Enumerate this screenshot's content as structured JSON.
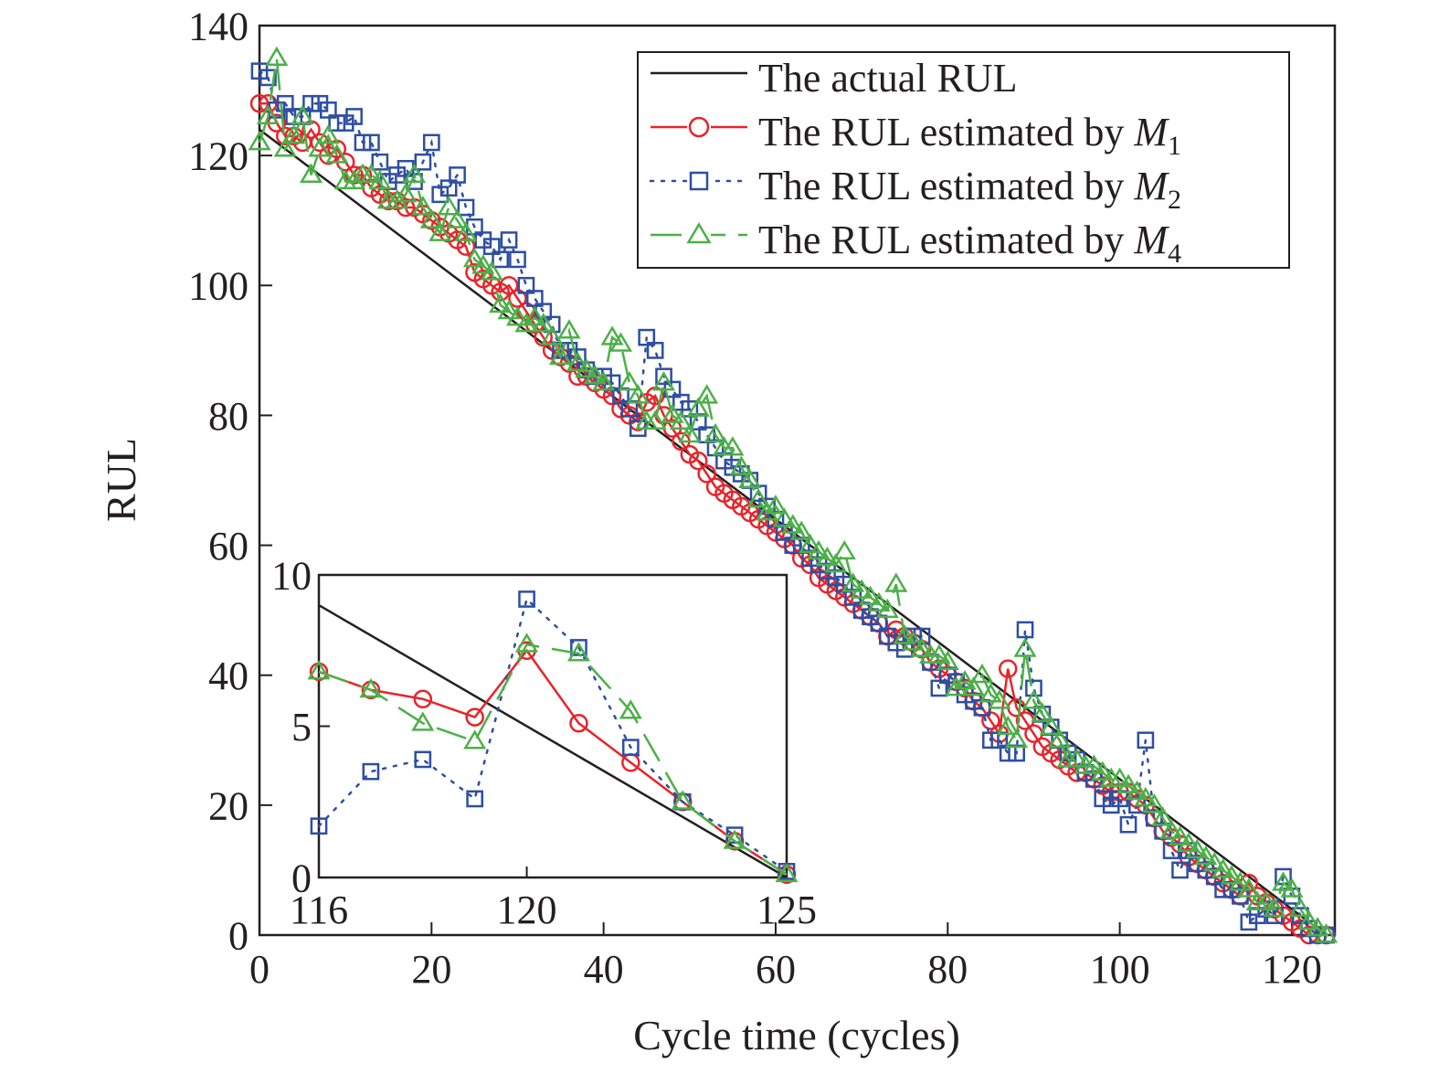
{
  "chart_data": [
    {
      "type": "line",
      "role": "main",
      "xlabel": "Cycle time (cycles)",
      "ylabel": "RUL",
      "xlim": [
        0,
        125
      ],
      "ylim": [
        0,
        140
      ],
      "xticks": [
        0,
        20,
        40,
        60,
        80,
        100,
        120
      ],
      "yticks": [
        0,
        20,
        40,
        60,
        80,
        100,
        120,
        140
      ],
      "legend_position": "top-right",
      "series": [
        {
          "name": "The actual RUL",
          "color": "#231f20",
          "style": "solid",
          "marker": "none",
          "x": [
            0,
            124
          ],
          "y": [
            124,
            0
          ]
        },
        {
          "name": "The RUL estimated by M1",
          "name_main": "The RUL estimated by ",
          "name_var": "M",
          "name_sub": "1",
          "color": "#e8242b",
          "style": "solid",
          "marker": "circle",
          "x": [
            0,
            1,
            2,
            3,
            4,
            5,
            6,
            7,
            8,
            9,
            10,
            11,
            12,
            13,
            14,
            15,
            16,
            17,
            18,
            19,
            20,
            21,
            22,
            23,
            24,
            25,
            26,
            27,
            28,
            29,
            30,
            31,
            32,
            33,
            34,
            35,
            36,
            37,
            38,
            39,
            40,
            41,
            42,
            43,
            44,
            45,
            46,
            47,
            48,
            49,
            50,
            51,
            52,
            53,
            54,
            55,
            56,
            57,
            58,
            59,
            60,
            61,
            62,
            63,
            64,
            65,
            66,
            67,
            68,
            69,
            70,
            71,
            72,
            73,
            74,
            75,
            76,
            77,
            78,
            79,
            80,
            81,
            82,
            83,
            84,
            85,
            86,
            87,
            88,
            89,
            90,
            91,
            92,
            93,
            94,
            95,
            96,
            97,
            98,
            99,
            100,
            101,
            102,
            103,
            104,
            105,
            106,
            107,
            108,
            109,
            110,
            111,
            112,
            113,
            114,
            115,
            116,
            117,
            118,
            119,
            120,
            121,
            122,
            123,
            124
          ],
          "y": [
            128,
            128,
            125,
            123,
            123,
            122,
            124,
            122,
            120,
            121,
            119,
            117,
            117,
            115,
            114,
            113,
            113,
            112,
            112,
            111,
            110,
            109,
            108,
            107,
            106,
            102,
            101,
            100,
            99,
            100,
            98,
            96,
            94,
            92,
            90,
            89,
            88,
            86,
            86,
            85,
            84,
            83,
            81,
            80,
            79,
            82,
            83,
            80,
            78,
            76,
            74,
            73,
            71,
            69,
            68,
            67,
            66,
            65,
            64,
            63,
            62,
            61,
            60,
            58,
            57,
            55,
            54,
            53,
            52,
            51,
            50,
            49,
            48,
            46,
            47,
            46,
            45,
            44,
            42,
            41,
            40,
            39,
            38,
            36,
            35,
            33,
            31,
            41,
            35,
            33,
            31,
            29,
            28,
            27,
            26,
            25,
            25,
            24,
            23,
            22,
            22,
            22,
            21,
            20,
            18,
            16,
            15,
            14,
            12,
            11,
            10,
            9,
            8,
            7,
            6,
            8,
            6,
            5,
            4,
            3,
            2,
            1,
            0,
            0,
            0
          ],
          "source_note": "estimated"
        },
        {
          "name": "The RUL estimated by M2",
          "name_main": "The RUL estimated by ",
          "name_var": "M",
          "name_sub": "2",
          "color": "#2e4ea2",
          "style": "dotted",
          "marker": "square",
          "x": [
            0,
            1,
            2,
            3,
            4,
            5,
            6,
            7,
            8,
            9,
            10,
            11,
            12,
            13,
            14,
            15,
            16,
            17,
            18,
            19,
            20,
            21,
            22,
            23,
            24,
            25,
            26,
            27,
            28,
            29,
            30,
            31,
            32,
            33,
            34,
            35,
            36,
            37,
            38,
            39,
            40,
            41,
            42,
            43,
            44,
            45,
            46,
            47,
            48,
            49,
            50,
            51,
            52,
            53,
            54,
            55,
            56,
            57,
            58,
            59,
            60,
            61,
            62,
            63,
            64,
            65,
            66,
            67,
            68,
            69,
            70,
            71,
            72,
            73,
            74,
            75,
            76,
            77,
            78,
            79,
            80,
            81,
            82,
            83,
            84,
            85,
            86,
            87,
            88,
            89,
            90,
            91,
            92,
            93,
            94,
            95,
            96,
            97,
            98,
            99,
            100,
            101,
            102,
            103,
            104,
            105,
            106,
            107,
            108,
            109,
            110,
            111,
            112,
            113,
            114,
            115,
            116,
            117,
            118,
            119,
            120,
            121,
            122,
            123,
            124
          ],
          "y": [
            133,
            132,
            127,
            128,
            126,
            126,
            128,
            128,
            127,
            125,
            125,
            126,
            122,
            122,
            119,
            116,
            117,
            118,
            116,
            119,
            122,
            114,
            115,
            117,
            112,
            109,
            107,
            106,
            104,
            107,
            104,
            100,
            98,
            96,
            94,
            90,
            90,
            89,
            87,
            86,
            86,
            85,
            83,
            81,
            78,
            92,
            90,
            86,
            84,
            82,
            81,
            79,
            77,
            75,
            73,
            72,
            71,
            70,
            68,
            66,
            64,
            62,
            60,
            60,
            58,
            57,
            56,
            55,
            54,
            52,
            50,
            49,
            48,
            46,
            45,
            44,
            46,
            46,
            42,
            38,
            40,
            39,
            37,
            36,
            35,
            30,
            30,
            28,
            28,
            47,
            38,
            34,
            32,
            30,
            28,
            27,
            25,
            24,
            21,
            20,
            21,
            17,
            20,
            30,
            18,
            16,
            13,
            10,
            13,
            11,
            10,
            9,
            7,
            7,
            6,
            2,
            3,
            4,
            3,
            9,
            6,
            3,
            1,
            0,
            0
          ],
          "source_note": "estimated"
        },
        {
          "name": "The RUL estimated by M4",
          "name_main": "The RUL estimated by ",
          "name_var": "M",
          "name_sub": "4",
          "color": "#4cb048",
          "style": "dashed",
          "marker": "triangle",
          "x": [
            0,
            1,
            2,
            3,
            4,
            5,
            6,
            7,
            8,
            9,
            10,
            11,
            12,
            13,
            14,
            15,
            16,
            17,
            18,
            19,
            20,
            21,
            22,
            23,
            24,
            25,
            26,
            27,
            28,
            29,
            30,
            31,
            32,
            33,
            34,
            35,
            36,
            37,
            38,
            39,
            40,
            41,
            42,
            43,
            44,
            45,
            46,
            47,
            48,
            49,
            50,
            51,
            52,
            53,
            54,
            55,
            56,
            57,
            58,
            59,
            60,
            61,
            62,
            63,
            64,
            65,
            66,
            67,
            68,
            69,
            70,
            71,
            72,
            73,
            74,
            75,
            76,
            77,
            78,
            79,
            80,
            81,
            82,
            83,
            84,
            85,
            86,
            87,
            88,
            89,
            90,
            91,
            92,
            93,
            94,
            95,
            96,
            97,
            98,
            99,
            100,
            101,
            102,
            103,
            104,
            105,
            106,
            107,
            108,
            109,
            110,
            111,
            112,
            113,
            114,
            115,
            116,
            117,
            118,
            119,
            120,
            121,
            122,
            123,
            124
          ],
          "y": [
            122,
            126,
            135,
            121,
            123,
            126,
            117,
            121,
            123,
            120,
            116,
            116,
            117,
            117,
            116,
            113,
            113,
            114,
            117,
            112,
            110,
            108,
            112,
            110,
            108,
            104,
            103,
            102,
            97,
            96,
            95,
            94,
            95,
            94,
            92,
            89,
            93,
            88,
            87,
            86,
            85,
            92,
            91,
            85,
            83,
            79,
            79,
            85,
            80,
            79,
            77,
            81,
            83,
            77,
            75,
            75,
            72,
            70,
            67,
            65,
            66,
            64,
            63,
            62,
            60,
            59,
            58,
            57,
            59,
            54,
            53,
            52,
            51,
            50,
            54,
            46,
            45,
            44,
            43,
            43,
            42,
            38,
            39,
            38,
            40,
            37,
            36,
            32,
            30,
            44,
            36,
            34,
            32,
            30,
            27,
            27,
            26,
            26,
            25,
            24,
            24,
            23,
            22,
            21,
            20,
            18,
            16,
            15,
            14,
            13,
            12,
            11,
            10,
            9,
            8,
            7,
            5,
            5,
            4,
            8,
            7,
            4,
            2,
            1,
            0
          ],
          "source_note": "estimated"
        }
      ]
    },
    {
      "type": "line",
      "role": "inset",
      "xlim": [
        116,
        125
      ],
      "ylim": [
        0,
        10
      ],
      "xticks": [
        116,
        120,
        125
      ],
      "yticks": [
        0,
        5,
        10
      ],
      "series": [
        {
          "name": "The actual RUL",
          "color": "#231f20",
          "style": "solid",
          "marker": "none",
          "x": [
            116,
            125
          ],
          "y": [
            9,
            0
          ]
        },
        {
          "name": "The RUL estimated by M1",
          "color": "#e8242b",
          "style": "solid",
          "marker": "circle",
          "x": [
            116,
            117,
            118,
            119,
            120,
            121,
            122,
            123,
            124,
            125
          ],
          "y": [
            6.8,
            6.2,
            5.9,
            5.3,
            7.5,
            5.1,
            3.8,
            2.5,
            1.2,
            0.1
          ]
        },
        {
          "name": "The RUL estimated by M2",
          "color": "#2e4ea2",
          "style": "dotted",
          "marker": "square",
          "x": [
            116,
            117,
            118,
            119,
            120,
            121,
            122,
            123,
            124,
            125
          ],
          "y": [
            1.7,
            3.5,
            3.9,
            2.6,
            9.2,
            7.6,
            4.3,
            2.5,
            1.4,
            0.2
          ]
        },
        {
          "name": "The RUL estimated by M4",
          "color": "#4cb048",
          "style": "dashed",
          "marker": "triangle",
          "x": [
            116,
            117,
            118,
            119,
            120,
            121,
            122,
            123,
            124,
            125
          ],
          "y": [
            6.8,
            6.2,
            5.1,
            4.5,
            7.7,
            7.4,
            5.5,
            2.5,
            1.2,
            0.1
          ]
        }
      ]
    }
  ]
}
